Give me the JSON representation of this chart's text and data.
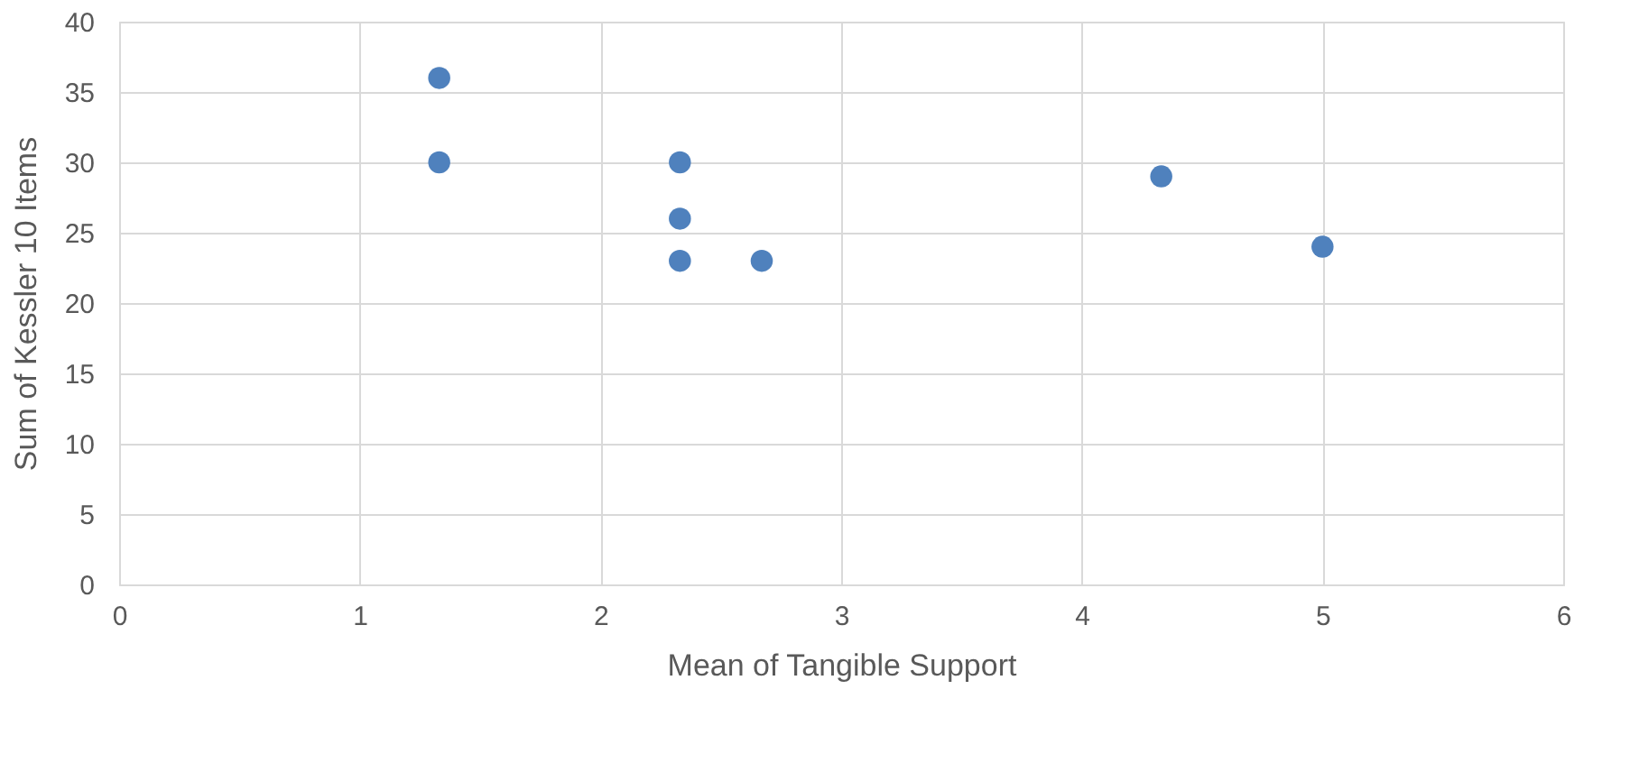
{
  "chart_data": {
    "type": "scatter",
    "xlabel": "Mean of Tangible Support",
    "ylabel": "Sum of Kessler 10 Items",
    "x": [
      1.33,
      1.33,
      2.33,
      2.33,
      2.33,
      2.67,
      4.33,
      5.0
    ],
    "series": [
      {
        "color": "#4f81bd",
        "values": [
          36,
          30,
          30,
          26,
          23,
          23,
          29,
          24
        ]
      }
    ],
    "xlim": [
      0,
      6
    ],
    "xticks": [
      0,
      1,
      2,
      3,
      4,
      5,
      6
    ],
    "ylim": [
      0,
      40
    ],
    "yticks": [
      0,
      5,
      10,
      15,
      20,
      25,
      30,
      35,
      40
    ],
    "grid": true,
    "marker": "circle"
  }
}
